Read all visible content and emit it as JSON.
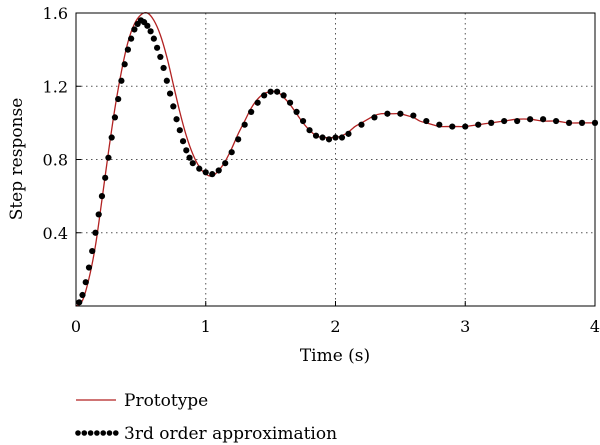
{
  "chart_data": {
    "type": "line",
    "xlabel": "Time (s)",
    "ylabel": "Step response",
    "xlim": [
      0,
      4
    ],
    "ylim": [
      0,
      1.6
    ],
    "x_ticks": [
      "0",
      "1",
      "2",
      "3",
      "4"
    ],
    "y_ticks": [
      "0.4",
      "0.8",
      "1.2",
      "1.6"
    ],
    "grid": "dotted",
    "legend_position": "below",
    "series": [
      {
        "name": "Prototype",
        "style": "line",
        "color": "#b22222",
        "points": [
          [
            0,
            0
          ],
          [
            0.05,
            0.03
          ],
          [
            0.1,
            0.15
          ],
          [
            0.15,
            0.33
          ],
          [
            0.2,
            0.58
          ],
          [
            0.25,
            0.84
          ],
          [
            0.3,
            1.08
          ],
          [
            0.35,
            1.28
          ],
          [
            0.4,
            1.44
          ],
          [
            0.45,
            1.54
          ],
          [
            0.5,
            1.59
          ],
          [
            0.55,
            1.6
          ],
          [
            0.6,
            1.56
          ],
          [
            0.65,
            1.48
          ],
          [
            0.7,
            1.36
          ],
          [
            0.75,
            1.21
          ],
          [
            0.8,
            1.06
          ],
          [
            0.85,
            0.93
          ],
          [
            0.9,
            0.83
          ],
          [
            0.95,
            0.76
          ],
          [
            1.0,
            0.72
          ],
          [
            1.05,
            0.71
          ],
          [
            1.1,
            0.74
          ],
          [
            1.15,
            0.79
          ],
          [
            1.2,
            0.86
          ],
          [
            1.25,
            0.94
          ],
          [
            1.3,
            1.01
          ],
          [
            1.35,
            1.08
          ],
          [
            1.4,
            1.13
          ],
          [
            1.45,
            1.16
          ],
          [
            1.5,
            1.17
          ],
          [
            1.55,
            1.17
          ],
          [
            1.6,
            1.14
          ],
          [
            1.65,
            1.1
          ],
          [
            1.7,
            1.05
          ],
          [
            1.75,
            1.0
          ],
          [
            1.8,
            0.96
          ],
          [
            1.85,
            0.93
          ],
          [
            1.9,
            0.92
          ],
          [
            1.95,
            0.92
          ],
          [
            2.0,
            0.92
          ],
          [
            2.05,
            0.93
          ],
          [
            2.1,
            0.95
          ],
          [
            2.15,
            0.98
          ],
          [
            2.2,
            1.0
          ],
          [
            2.25,
            1.02
          ],
          [
            2.3,
            1.04
          ],
          [
            2.35,
            1.05
          ],
          [
            2.4,
            1.05
          ],
          [
            2.45,
            1.05
          ],
          [
            2.5,
            1.05
          ],
          [
            2.55,
            1.04
          ],
          [
            2.6,
            1.03
          ],
          [
            2.65,
            1.01
          ],
          [
            2.7,
            1.0
          ],
          [
            2.75,
            0.99
          ],
          [
            2.8,
            0.98
          ],
          [
            2.85,
            0.98
          ],
          [
            2.9,
            0.98
          ],
          [
            2.95,
            0.98
          ],
          [
            3.0,
            0.98
          ],
          [
            3.1,
            0.99
          ],
          [
            3.2,
            1.0
          ],
          [
            3.3,
            1.01
          ],
          [
            3.4,
            1.02
          ],
          [
            3.5,
            1.02
          ],
          [
            3.6,
            1.01
          ],
          [
            3.7,
            1.01
          ],
          [
            3.8,
            1.0
          ],
          [
            3.9,
            1.0
          ],
          [
            4.0,
            1.0
          ]
        ]
      },
      {
        "name": "3rd order approximation",
        "style": "dots",
        "color": "#000000",
        "points": [
          [
            0.025,
            0.02
          ],
          [
            0.05,
            0.06
          ],
          [
            0.075,
            0.13
          ],
          [
            0.1,
            0.21
          ],
          [
            0.125,
            0.3
          ],
          [
            0.15,
            0.4
          ],
          [
            0.175,
            0.5
          ],
          [
            0.2,
            0.6
          ],
          [
            0.225,
            0.7
          ],
          [
            0.25,
            0.81
          ],
          [
            0.275,
            0.92
          ],
          [
            0.3,
            1.03
          ],
          [
            0.325,
            1.13
          ],
          [
            0.35,
            1.23
          ],
          [
            0.375,
            1.32
          ],
          [
            0.4,
            1.4
          ],
          [
            0.425,
            1.46
          ],
          [
            0.45,
            1.51
          ],
          [
            0.475,
            1.54
          ],
          [
            0.5,
            1.56
          ],
          [
            0.525,
            1.55
          ],
          [
            0.55,
            1.53
          ],
          [
            0.575,
            1.5
          ],
          [
            0.6,
            1.46
          ],
          [
            0.625,
            1.41
          ],
          [
            0.65,
            1.36
          ],
          [
            0.675,
            1.3
          ],
          [
            0.7,
            1.23
          ],
          [
            0.725,
            1.16
          ],
          [
            0.75,
            1.09
          ],
          [
            0.775,
            1.02
          ],
          [
            0.8,
            0.96
          ],
          [
            0.825,
            0.9
          ],
          [
            0.85,
            0.85
          ],
          [
            0.875,
            0.81
          ],
          [
            0.9,
            0.78
          ],
          [
            0.95,
            0.75
          ],
          [
            1.0,
            0.73
          ],
          [
            1.05,
            0.72
          ],
          [
            1.1,
            0.74
          ],
          [
            1.15,
            0.78
          ],
          [
            1.2,
            0.84
          ],
          [
            1.25,
            0.91
          ],
          [
            1.3,
            0.99
          ],
          [
            1.35,
            1.06
          ],
          [
            1.4,
            1.11
          ],
          [
            1.45,
            1.15
          ],
          [
            1.5,
            1.17
          ],
          [
            1.55,
            1.17
          ],
          [
            1.6,
            1.15
          ],
          [
            1.65,
            1.11
          ],
          [
            1.7,
            1.06
          ],
          [
            1.75,
            1.01
          ],
          [
            1.8,
            0.96
          ],
          [
            1.85,
            0.93
          ],
          [
            1.9,
            0.92
          ],
          [
            1.95,
            0.91
          ],
          [
            2.0,
            0.92
          ],
          [
            2.05,
            0.92
          ],
          [
            2.1,
            0.94
          ],
          [
            2.2,
            0.99
          ],
          [
            2.3,
            1.03
          ],
          [
            2.4,
            1.05
          ],
          [
            2.5,
            1.05
          ],
          [
            2.6,
            1.04
          ],
          [
            2.7,
            1.01
          ],
          [
            2.8,
            0.99
          ],
          [
            2.9,
            0.98
          ],
          [
            3.0,
            0.98
          ],
          [
            3.1,
            0.99
          ],
          [
            3.2,
            1.0
          ],
          [
            3.3,
            1.01
          ],
          [
            3.4,
            1.01
          ],
          [
            3.5,
            1.02
          ],
          [
            3.6,
            1.02
          ],
          [
            3.7,
            1.01
          ],
          [
            3.8,
            1.0
          ],
          [
            3.9,
            1.0
          ],
          [
            4.0,
            1.0
          ]
        ]
      }
    ]
  }
}
